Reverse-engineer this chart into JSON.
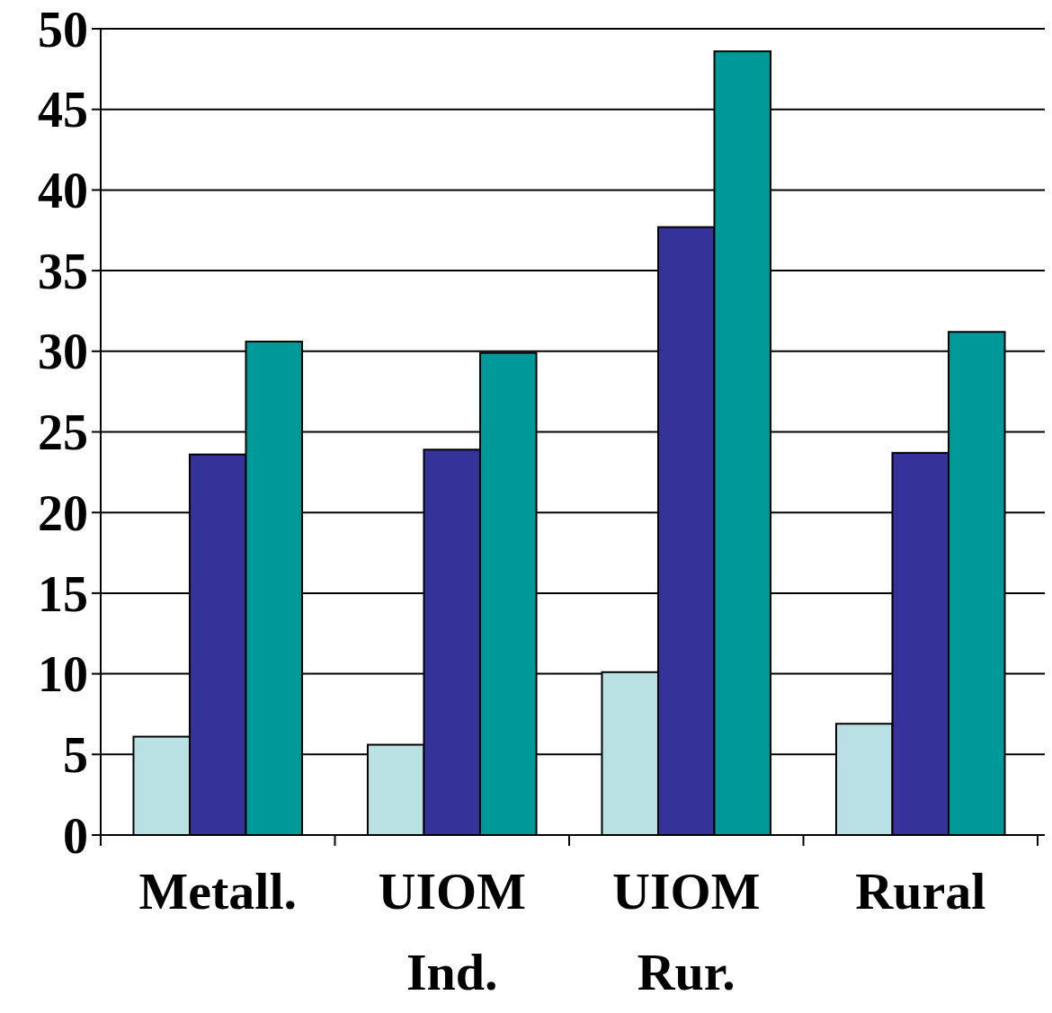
{
  "chart_data": {
    "type": "bar",
    "categories": [
      "Metall.",
      "UIOM Ind.",
      "UIOM Rur.",
      "Rural"
    ],
    "series": [
      {
        "color": "#b9e0e3",
        "values": [
          6.1,
          5.6,
          10.1,
          6.9
        ]
      },
      {
        "color": "#35339a",
        "values": [
          23.6,
          23.9,
          37.7,
          23.7
        ]
      },
      {
        "color": "#009999",
        "values": [
          30.6,
          29.9,
          48.6,
          31.2
        ]
      }
    ],
    "ylim": [
      0,
      50
    ],
    "yticks": [
      0,
      5,
      10,
      15,
      20,
      25,
      30,
      35,
      40,
      45,
      50
    ],
    "grid": "y"
  }
}
